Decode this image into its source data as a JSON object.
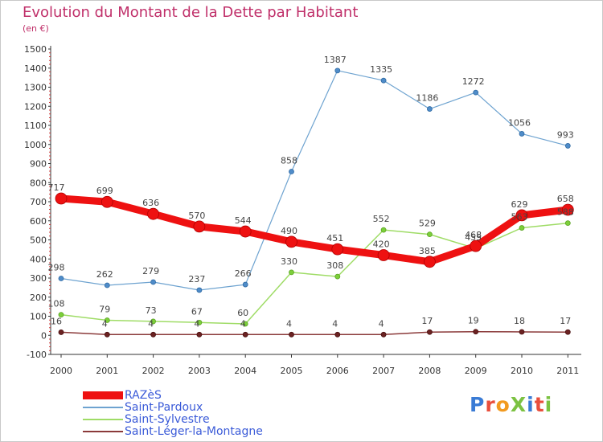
{
  "title": "Evolution du Montant de la Dette par Habitant",
  "subtitle": "(en €)",
  "logo": {
    "text": "ProXiti",
    "colors": [
      "#3a7bd5",
      "#e94e3c",
      "#f29a1f",
      "#7cc242",
      "#3a7bd5",
      "#e94e3c",
      "#7cc242"
    ]
  },
  "chart_data": {
    "type": "line",
    "title": "Evolution du Montant de la Dette par Habitant",
    "ylabel": "(en €)",
    "xlabel": "",
    "x": [
      "2000",
      "2001",
      "2002",
      "2003",
      "2004",
      "2005",
      "2006",
      "2007",
      "2008",
      "2009",
      "2010",
      "2011"
    ],
    "ylim": [
      -100,
      1500
    ],
    "yticks": [
      -100,
      0,
      100,
      200,
      300,
      400,
      500,
      600,
      700,
      800,
      900,
      1000,
      1100,
      1200,
      1300,
      1400,
      1500
    ],
    "grid": false,
    "legend_position": "bottom-left",
    "series": [
      {
        "name": "RAZèS",
        "color": "#ee1111",
        "values": [
          717,
          699,
          636,
          570,
          544,
          490,
          451,
          420,
          385,
          468,
          629,
          658
        ]
      },
      {
        "name": "Saint-Pardoux",
        "color": "#6ea3d0",
        "values": [
          298,
          262,
          279,
          237,
          266,
          858,
          1387,
          1335,
          1186,
          1272,
          1056,
          993
        ]
      },
      {
        "name": "Saint-Sylvestre",
        "color": "#9fdc66",
        "values": [
          108,
          79,
          73,
          67,
          60,
          330,
          308,
          552,
          529,
          455,
          563,
          588
        ]
      },
      {
        "name": "Saint-Léger-la-Montagne",
        "color": "#8b3a3a",
        "values": [
          16,
          4,
          4,
          4,
          4,
          4,
          4,
          4,
          17,
          19,
          18,
          17
        ]
      }
    ],
    "labels": [
      {
        "series": 0,
        "text": [
          "717",
          "699",
          "636",
          "570",
          "544",
          "490",
          "451",
          "420",
          "385",
          "468",
          "629",
          "658"
        ]
      },
      {
        "series": 1,
        "text": [
          "298",
          "262",
          "279",
          "237",
          "266",
          "858",
          "1387",
          "1335",
          "1186",
          "1272",
          "1056",
          "993"
        ]
      },
      {
        "series": 2,
        "text": [
          "108",
          "79",
          "73",
          "67",
          "60",
          "330",
          "308",
          "552",
          "529",
          "455",
          "563",
          "588"
        ]
      },
      {
        "series": 3,
        "text": [
          "16",
          "4",
          "4",
          "4",
          "4",
          "4",
          "4",
          "4",
          "17",
          "19",
          "18",
          "17"
        ]
      }
    ]
  }
}
